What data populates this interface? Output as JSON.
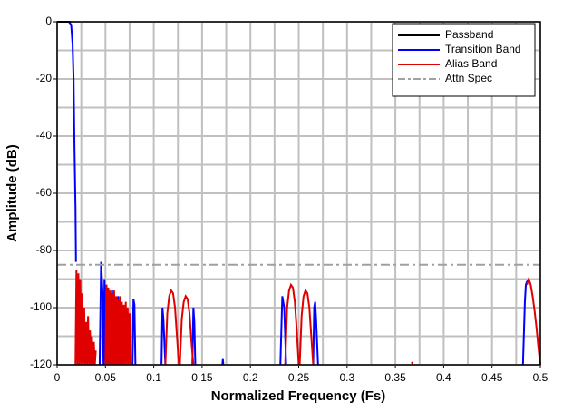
{
  "chart_data": {
    "type": "line",
    "xlabel": "Normalized Frequency (Fs)",
    "ylabel": "Amplitude (dB)",
    "xlim": [
      0,
      0.5
    ],
    "ylim": [
      -120,
      0
    ],
    "xticks": [
      0,
      0.05,
      0.1,
      0.15,
      0.2,
      0.25,
      0.3,
      0.35,
      0.4,
      0.45,
      0.5
    ],
    "yticks": [
      0,
      -20,
      -40,
      -60,
      -80,
      -100,
      -120
    ],
    "x_minor_grid": [
      0.025,
      0.075,
      0.125,
      0.175,
      0.225,
      0.275,
      0.325,
      0.375,
      0.425,
      0.475
    ],
    "y_minor_grid": [
      -10,
      -30,
      -50,
      -70,
      -90,
      -110
    ],
    "grid": true,
    "legend": "upper right",
    "series": [
      {
        "name": "Passband",
        "color": "#000000",
        "x": [
          0,
          0.014
        ],
        "values": [
          0,
          0
        ]
      },
      {
        "name": "Transition Band",
        "color": "#0000ff",
        "x": [
          0.012,
          0.0145,
          0.016,
          0.017,
          0.018,
          0.019,
          0.0195,
          0.02,
          0.044,
          0.0455,
          0.047,
          0.048,
          0.049,
          0.05,
          0.051,
          0.052,
          0.053,
          0.054,
          0.055,
          0.056,
          0.057,
          0.058,
          0.059,
          0.06,
          0.061,
          0.062,
          0.063,
          0.064,
          0.065,
          0.066,
          0.067,
          0.068,
          0.069,
          0.07,
          0.071,
          0.078,
          0.079,
          0.08,
          0.081,
          0.082,
          0.108,
          0.109,
          0.11,
          0.111,
          0.112,
          0.113,
          0.14,
          0.141,
          0.142,
          0.143,
          0.144,
          0.171,
          0.1715,
          0.172,
          0.173,
          0.231,
          0.233,
          0.235,
          0.237,
          0.238,
          0.265,
          0.266,
          0.267,
          0.268,
          0.27,
          0.271,
          0.482,
          0.484,
          0.485,
          0.486,
          0.488
        ],
        "values": [
          0,
          -1,
          -8,
          -20,
          -45,
          -65,
          -84,
          null,
          -120,
          -84,
          -95,
          -120,
          -90,
          -120,
          -92,
          -120,
          -93,
          -120,
          -95,
          -120,
          -94,
          -120,
          -96,
          -120,
          -97,
          -120,
          -96,
          -120,
          -98,
          -120,
          -99,
          -120,
          -100,
          -120,
          null,
          -120,
          -97,
          -99,
          -120,
          null,
          -120,
          -100,
          -104,
          -112,
          -120,
          null,
          -120,
          -100,
          -105,
          -120,
          null,
          -120,
          -118,
          -120,
          null,
          -120,
          -96,
          -100,
          -120,
          null,
          -120,
          -100,
          -98,
          -104,
          -120,
          null,
          -120,
          -98,
          -92,
          -91,
          -90
        ]
      },
      {
        "name": "Alias Band",
        "color": "#e00000",
        "x": [
          0.019,
          0.02,
          0.021,
          0.022,
          0.023,
          0.024,
          0.025,
          0.026,
          0.027,
          0.028,
          0.029,
          0.03,
          0.031,
          0.032,
          0.033,
          0.034,
          0.035,
          0.036,
          0.037,
          0.038,
          0.039,
          0.04,
          0.041,
          0.05,
          0.051,
          0.052,
          0.053,
          0.054,
          0.055,
          0.056,
          0.057,
          0.058,
          0.059,
          0.06,
          0.061,
          0.062,
          0.063,
          0.064,
          0.065,
          0.066,
          0.067,
          0.068,
          0.069,
          0.07,
          0.071,
          0.072,
          0.073,
          0.074,
          0.075,
          0.076,
          0.077,
          0.112,
          0.114,
          0.116,
          0.118,
          0.12,
          0.122,
          0.124,
          0.126,
          0.1265,
          0.127,
          0.129,
          0.131,
          0.133,
          0.135,
          0.137,
          0.139,
          0.141,
          0.142,
          0.236,
          0.238,
          0.24,
          0.242,
          0.244,
          0.246,
          0.248,
          0.25,
          0.2505,
          0.251,
          0.253,
          0.255,
          0.257,
          0.259,
          0.261,
          0.263,
          0.265,
          0.266,
          0.367,
          0.368,
          0.369,
          0.486,
          0.488,
          0.49,
          0.492,
          0.494,
          0.496,
          0.498,
          0.5
        ],
        "values": [
          -120,
          -87,
          -120,
          -88,
          -120,
          -90,
          -120,
          -95,
          -120,
          -100,
          -120,
          -105,
          -120,
          -103,
          -120,
          -108,
          -120,
          -110,
          -120,
          -112,
          -120,
          -115,
          null,
          -120,
          -92,
          -120,
          -93,
          -120,
          -94,
          -120,
          -95,
          -120,
          -94,
          -120,
          -96,
          -120,
          -97,
          -120,
          -96,
          -120,
          -98,
          -120,
          -99,
          -120,
          -98,
          -120,
          -100,
          -120,
          -102,
          -120,
          null,
          -120,
          -102,
          -96,
          -94,
          -95,
          -100,
          -110,
          -120,
          null,
          -120,
          -104,
          -98,
          -96,
          -97,
          -102,
          -112,
          -120,
          null,
          -120,
          -100,
          -94,
          -92,
          -93,
          -98,
          -108,
          -120,
          null,
          -120,
          -103,
          -96,
          -94,
          -95,
          -100,
          -110,
          -120,
          null,
          -119,
          -120,
          null,
          -92,
          -90,
          -92,
          -96,
          -101,
          -107,
          -114,
          -120
        ]
      },
      {
        "name": "Attn Spec",
        "color": "#a0a0a0",
        "dash": "dash-dot",
        "x": [
          0,
          0.5
        ],
        "values": [
          -85,
          -85
        ]
      }
    ]
  }
}
